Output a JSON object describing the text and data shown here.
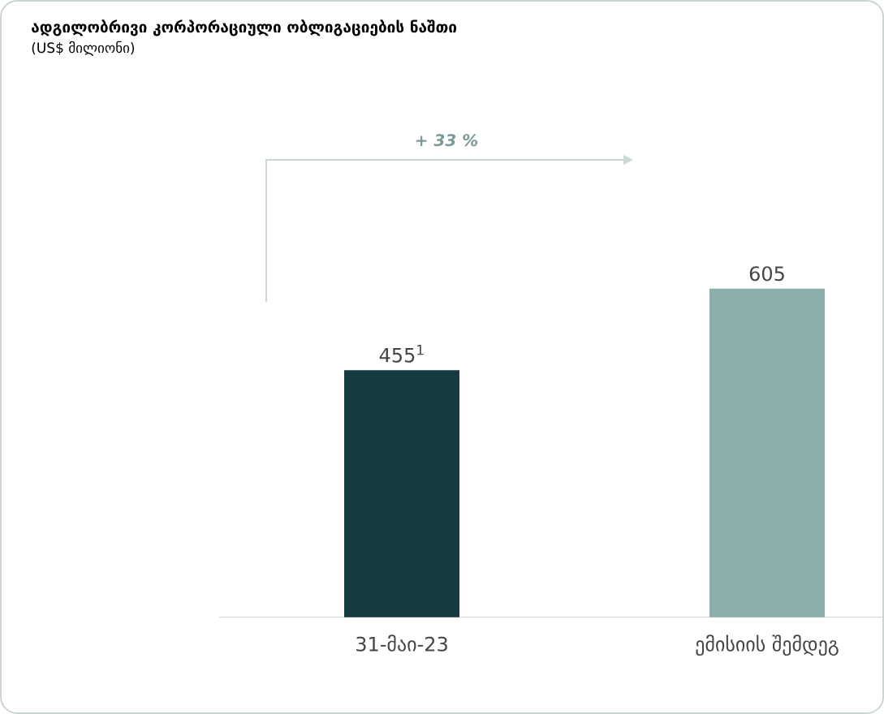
{
  "chart_data": {
    "type": "bar",
    "title": "ადგილობრივი კორპორაციული ობლიგაციების ნაშთი",
    "subtitle": "(US$ მილიონი)",
    "categories": [
      "31-მაი-23",
      "ემისიის შემდეგ"
    ],
    "values": [
      455,
      605
    ],
    "colors": [
      "#153a40",
      "#8aaeaa"
    ],
    "value_labels": [
      "455$^{1}$",
      "605"
    ],
    "annotations": [
      "+ 33 %"
    ],
    "tick_labels": "x"
  }
}
